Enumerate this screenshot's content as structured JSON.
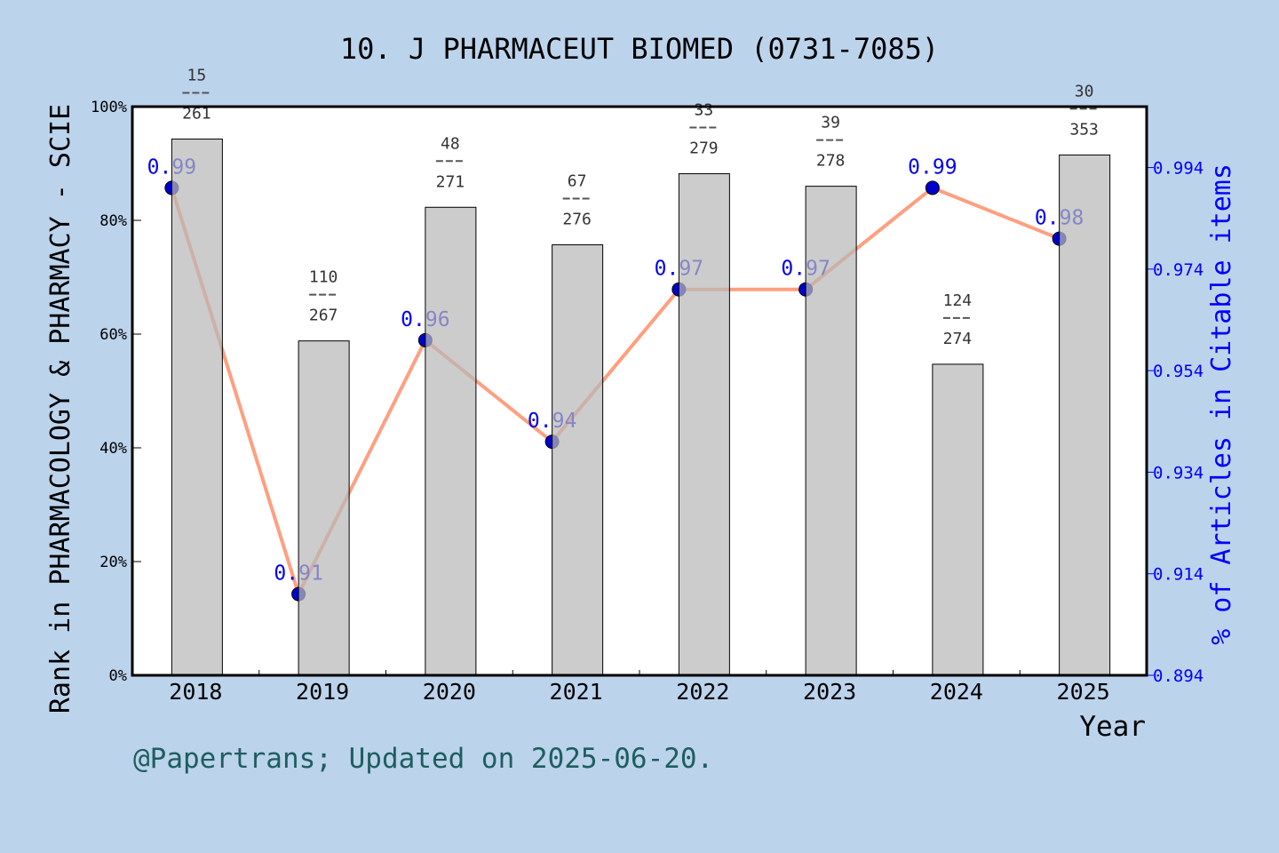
{
  "chart_data": {
    "type": "bar+line",
    "title": "10. J PHARMACEUT BIOMED (0731-7085)",
    "xlabel": "Year",
    "ylabel_left": "Rank in PHARMACOLOGY & PHARMACY - SCIE",
    "ylabel_right": "% of Articles in Citable items",
    "categories": [
      "2018",
      "2019",
      "2020",
      "2021",
      "2022",
      "2023",
      "2024",
      "2025"
    ],
    "left_axis": {
      "ylim": [
        0,
        100
      ],
      "ticks": [
        "0%",
        "20%",
        "40%",
        "60%",
        "80%",
        "100%"
      ]
    },
    "right_axis": {
      "ylim": [
        0.894,
        1.006
      ],
      "ticks": [
        "0.894",
        "0.914",
        "0.934",
        "0.954",
        "0.974",
        "0.994"
      ]
    },
    "bars": {
      "ranks": [
        15,
        110,
        48,
        67,
        33,
        39,
        124,
        30
      ],
      "totals": [
        261,
        267,
        271,
        276,
        279,
        278,
        274,
        353
      ],
      "percentile": [
        94.3,
        58.8,
        82.3,
        75.7,
        88.2,
        86.0,
        54.7,
        91.5
      ],
      "color": "#b8b8b8"
    },
    "line": {
      "values": [
        0.99,
        0.91,
        0.96,
        0.94,
        0.97,
        0.97,
        0.99,
        0.98
      ],
      "labels": [
        "0.99",
        "0.91",
        "0.96",
        "0.94",
        "0.97",
        "0.97",
        "0.99",
        "0.98"
      ],
      "line_color": "#ff9f7f",
      "marker_color": "#0000cc"
    },
    "grid": false
  },
  "footer": {
    "credit": "@Papertrans; Updated on 2025-06-20."
  },
  "colors": {
    "background": "#bcd3ec",
    "plot_bg": "#ffffff",
    "right_axis": "#0000ff",
    "credit": "#1e5e5e"
  }
}
